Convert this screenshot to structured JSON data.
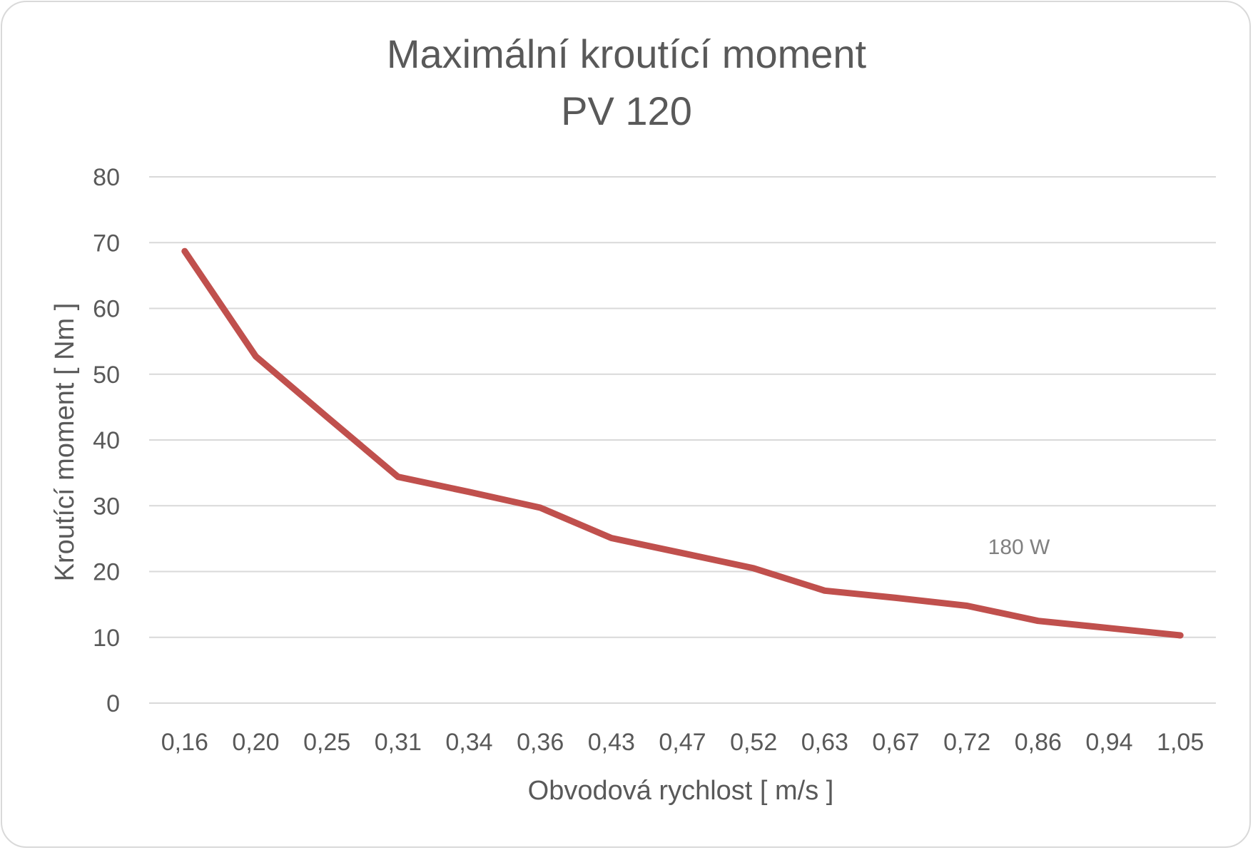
{
  "chart_data": {
    "type": "line",
    "title": "Maximální kroutící moment",
    "subtitle": "PV 120",
    "xlabel": "Obvodová rychlost  [ m/s ]",
    "ylabel": "Kroutící moment  [ Nm ]",
    "ylim": [
      0,
      80
    ],
    "yticks": [
      0,
      10,
      20,
      30,
      40,
      50,
      60,
      70,
      80
    ],
    "grid": true,
    "categories": [
      "0,16",
      "0,20",
      "0,25",
      "0,31",
      "0,34",
      "0,36",
      "0,43",
      "0,47",
      "0,52",
      "0,63",
      "0,67",
      "0,72",
      "0,86",
      "0,94",
      "1,05"
    ],
    "series": [
      {
        "color": "#c0504d",
        "values": [
          68.7,
          52.7,
          43.5,
          34.4,
          32.1,
          29.7,
          25.1,
          22.8,
          20.5,
          17.1,
          16.0,
          14.8,
          12.5,
          11.4,
          10.3
        ]
      }
    ],
    "annotations": [
      {
        "text": "180 W"
      }
    ]
  }
}
